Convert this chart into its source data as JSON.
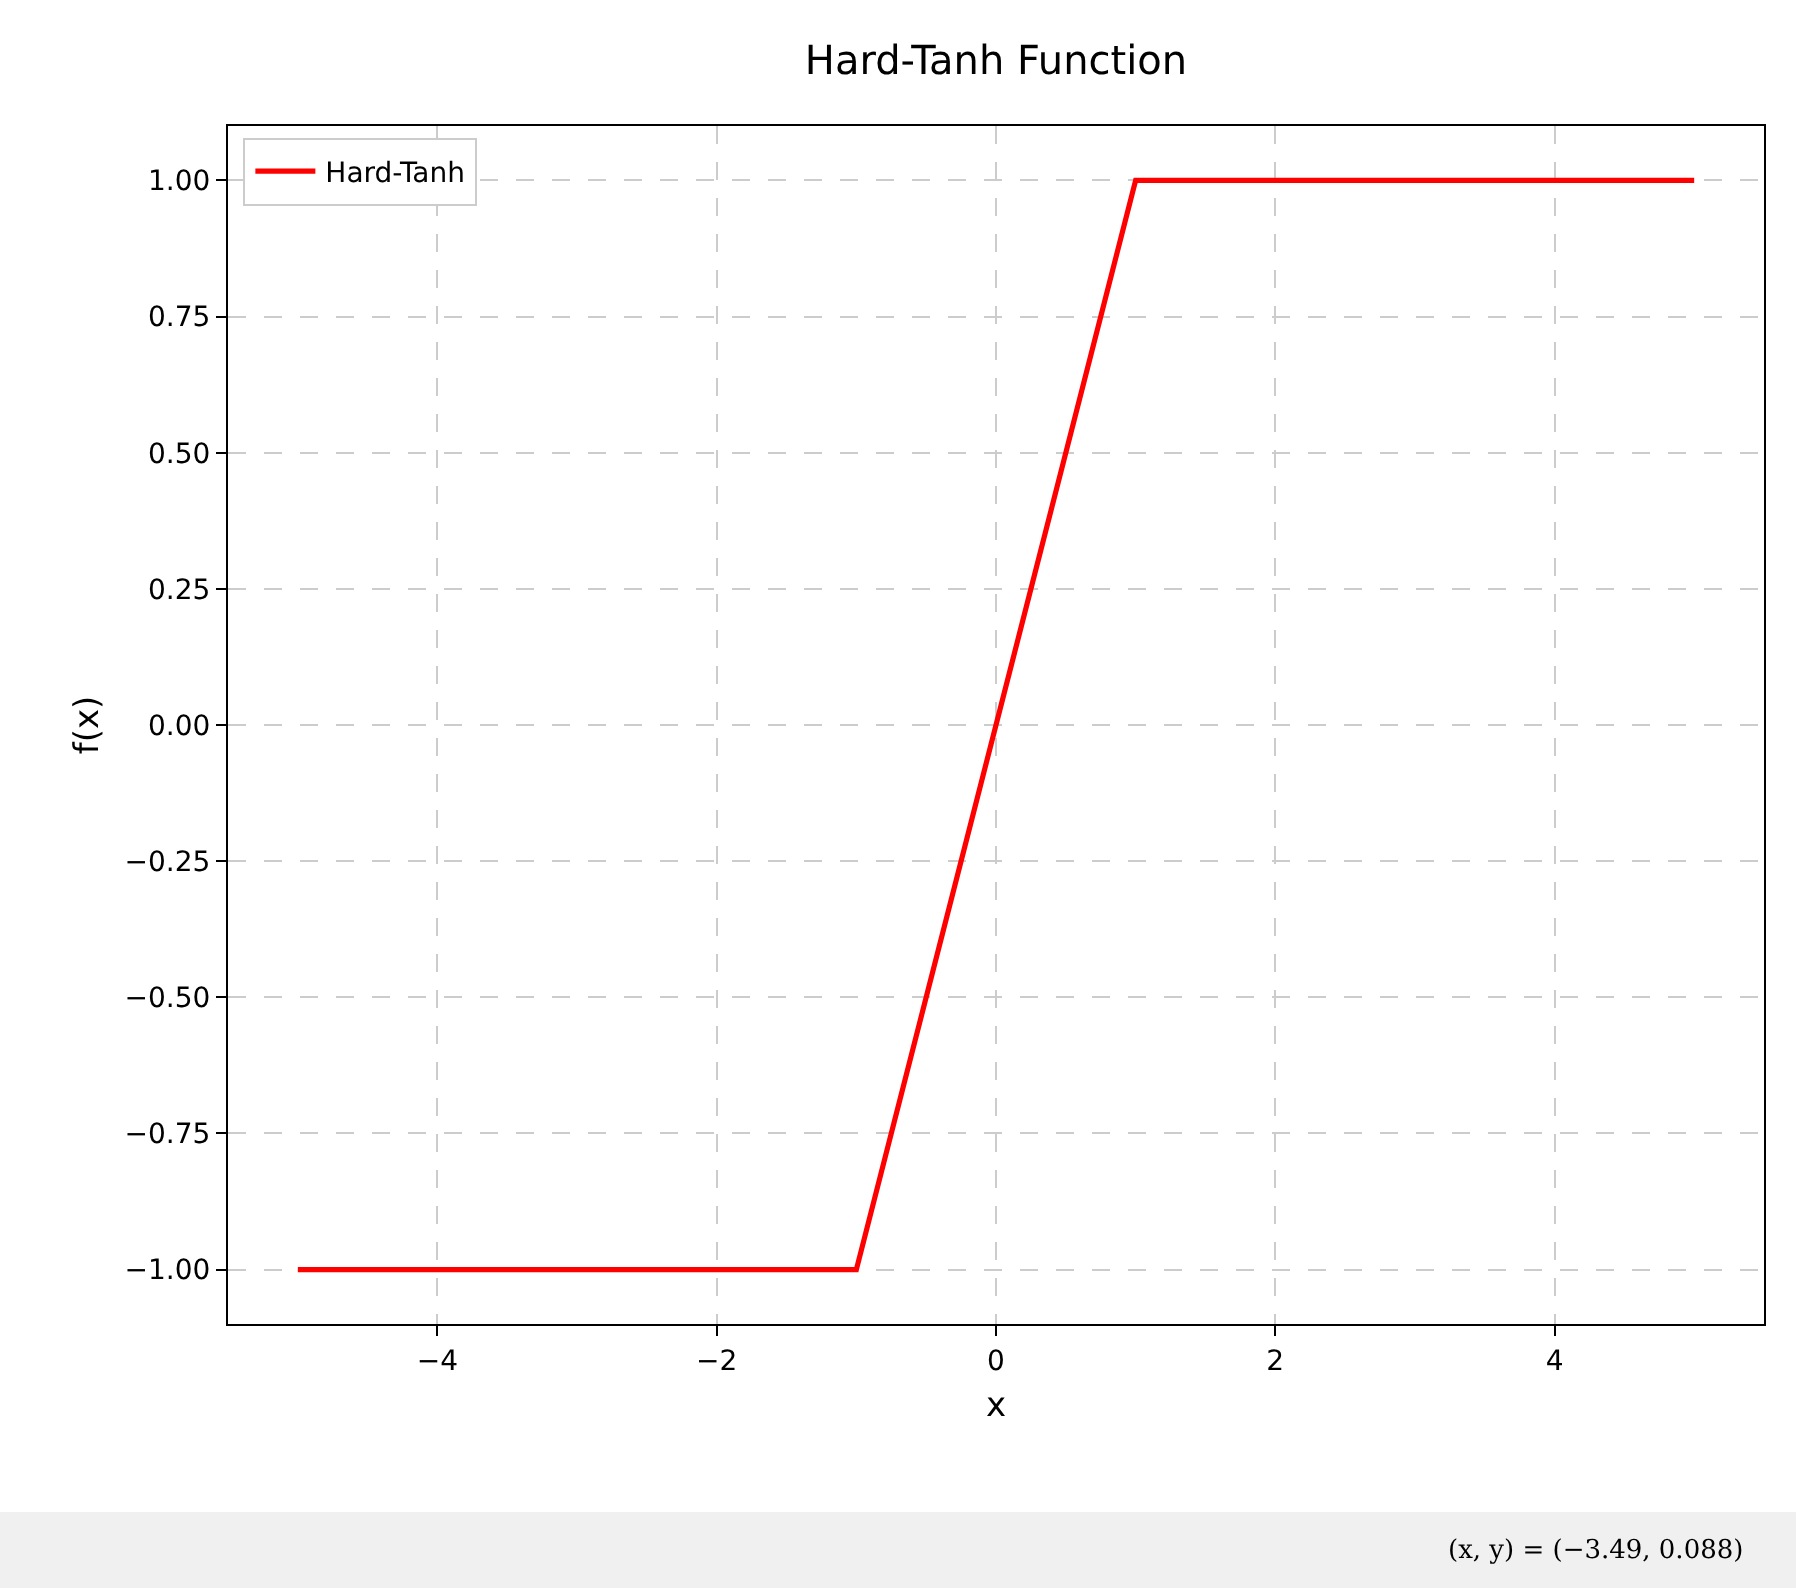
{
  "chart_data": {
    "type": "line",
    "title": "Hard-Tanh Function",
    "xlabel": "x",
    "ylabel": "f(x)",
    "x": [
      -5,
      -1,
      1,
      5
    ],
    "series": [
      {
        "name": "Hard-Tanh",
        "color": "#ff0000",
        "values": [
          -1,
          -1,
          1,
          1
        ]
      }
    ],
    "xlim": [
      -5.5,
      5.5
    ],
    "xticks": [
      {
        "value": -4,
        "label": "−4"
      },
      {
        "value": -2,
        "label": "−2"
      },
      0,
      2,
      4
    ],
    "ylim": [
      -1.1,
      1.1
    ],
    "yticks": [
      {
        "value": -1,
        "label": "−1.00"
      },
      {
        "value": -0.75,
        "label": "−0.75"
      },
      {
        "value": -0.5,
        "label": "−0.50"
      },
      {
        "value": -0.25,
        "label": "−0.25"
      },
      {
        "value": 0,
        "label": "0.00"
      },
      {
        "value": 0.25,
        "label": "0.25"
      },
      {
        "value": 0.5,
        "label": "0.50"
      },
      {
        "value": 0.75,
        "label": "0.75"
      },
      {
        "value": 1,
        "label": "1.00"
      }
    ],
    "grid": true,
    "legend": "top left",
    "line_style": "solid",
    "marker": "none",
    "annotations": [
      "(x, y) = (−3.49, 0.088)"
    ]
  }
}
